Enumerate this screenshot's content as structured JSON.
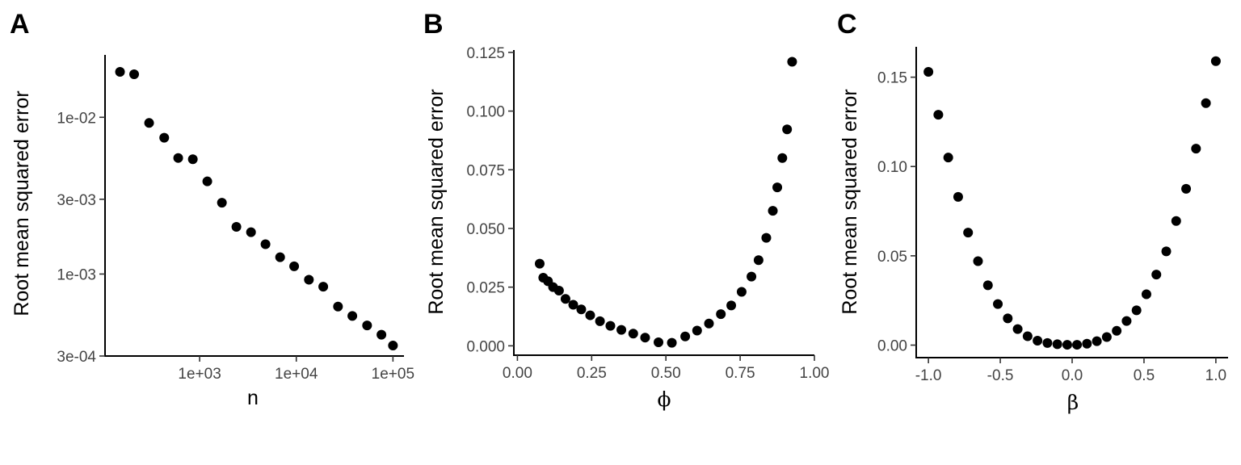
{
  "chart_data": [
    {
      "panel": "A",
      "type": "scatter",
      "xlabel": "n",
      "ylabel": "Root mean squared error",
      "xscale": "log10",
      "yscale": "log10",
      "xlim": [
        105,
        130000
      ],
      "ylim": [
        0.0003,
        0.025
      ],
      "xticks": [
        1000,
        10000,
        100000
      ],
      "xtick_labels": [
        "1e+03",
        "1e+04",
        "1e+05"
      ],
      "yticks": [
        0.0003,
        0.001,
        0.003,
        0.01
      ],
      "ytick_labels": [
        "3e-04",
        "1e-03",
        "3e-03",
        "1e-02"
      ],
      "grid": false,
      "points": [
        {
          "x": 150,
          "y": 0.0195
        },
        {
          "x": 210,
          "y": 0.0188
        },
        {
          "x": 300,
          "y": 0.0092
        },
        {
          "x": 430,
          "y": 0.0074
        },
        {
          "x": 600,
          "y": 0.0055
        },
        {
          "x": 850,
          "y": 0.0054
        },
        {
          "x": 1200,
          "y": 0.0039
        },
        {
          "x": 1700,
          "y": 0.00285
        },
        {
          "x": 2400,
          "y": 0.002
        },
        {
          "x": 3400,
          "y": 0.00185
        },
        {
          "x": 4800,
          "y": 0.00155
        },
        {
          "x": 6800,
          "y": 0.00128
        },
        {
          "x": 9500,
          "y": 0.00112
        },
        {
          "x": 13500,
          "y": 0.00092
        },
        {
          "x": 19000,
          "y": 0.00083
        },
        {
          "x": 27000,
          "y": 0.00062
        },
        {
          "x": 38000,
          "y": 0.00054
        },
        {
          "x": 54000,
          "y": 0.00047
        },
        {
          "x": 76000,
          "y": 0.00041
        },
        {
          "x": 100000,
          "y": 0.00035
        }
      ]
    },
    {
      "panel": "B",
      "type": "scatter",
      "xlabel": "ϕ",
      "ylabel": "Root mean squared error",
      "xscale": "linear",
      "yscale": "linear",
      "xlim": [
        -0.012,
        1.0
      ],
      "ylim": [
        -0.004,
        0.126
      ],
      "xticks": [
        0,
        0.25,
        0.5,
        0.75,
        1.0
      ],
      "xtick_labels": [
        "0.00",
        "0.25",
        "0.50",
        "0.75",
        "1.00"
      ],
      "yticks": [
        0,
        0.025,
        0.05,
        0.075,
        0.1,
        0.125
      ],
      "ytick_labels": [
        "0.000",
        "0.025",
        "0.050",
        "0.075",
        "0.100",
        "0.125"
      ],
      "grid": false,
      "points": [
        {
          "x": 0.075,
          "y": 0.035
        },
        {
          "x": 0.087,
          "y": 0.029
        },
        {
          "x": 0.103,
          "y": 0.0275
        },
        {
          "x": 0.12,
          "y": 0.025
        },
        {
          "x": 0.14,
          "y": 0.0235
        },
        {
          "x": 0.162,
          "y": 0.02
        },
        {
          "x": 0.188,
          "y": 0.0175
        },
        {
          "x": 0.215,
          "y": 0.0155
        },
        {
          "x": 0.245,
          "y": 0.013
        },
        {
          "x": 0.278,
          "y": 0.0105
        },
        {
          "x": 0.313,
          "y": 0.0085
        },
        {
          "x": 0.35,
          "y": 0.0068
        },
        {
          "x": 0.39,
          "y": 0.0052
        },
        {
          "x": 0.43,
          "y": 0.0035
        },
        {
          "x": 0.475,
          "y": 0.0015
        },
        {
          "x": 0.52,
          "y": 0.0013
        },
        {
          "x": 0.565,
          "y": 0.004
        },
        {
          "x": 0.605,
          "y": 0.0065
        },
        {
          "x": 0.645,
          "y": 0.0095
        },
        {
          "x": 0.685,
          "y": 0.0135
        },
        {
          "x": 0.72,
          "y": 0.0172
        },
        {
          "x": 0.755,
          "y": 0.023
        },
        {
          "x": 0.788,
          "y": 0.0295
        },
        {
          "x": 0.812,
          "y": 0.0365
        },
        {
          "x": 0.838,
          "y": 0.046
        },
        {
          "x": 0.86,
          "y": 0.0575
        },
        {
          "x": 0.875,
          "y": 0.0675
        },
        {
          "x": 0.892,
          "y": 0.08
        },
        {
          "x": 0.908,
          "y": 0.0922
        },
        {
          "x": 0.925,
          "y": 0.121
        }
      ]
    },
    {
      "panel": "C",
      "type": "scatter",
      "xlabel": "β",
      "ylabel": "Root mean squared error",
      "xscale": "linear",
      "yscale": "linear",
      "xlim": [
        -1.085,
        1.085
      ],
      "ylim": [
        -0.007,
        0.167
      ],
      "xticks": [
        -1.0,
        -0.5,
        0.0,
        0.5,
        1.0
      ],
      "xtick_labels": [
        "-1.0",
        "-0.5",
        "0.0",
        "0.5",
        "1.0"
      ],
      "yticks": [
        0,
        0.05,
        0.1,
        0.15
      ],
      "ytick_labels": [
        "0.00",
        "0.05",
        "0.10",
        "0.15"
      ],
      "grid": false,
      "points": [
        {
          "x": -1.0,
          "y": 0.153
        },
        {
          "x": -0.931,
          "y": 0.129
        },
        {
          "x": -0.862,
          "y": 0.105
        },
        {
          "x": -0.793,
          "y": 0.083
        },
        {
          "x": -0.724,
          "y": 0.063
        },
        {
          "x": -0.655,
          "y": 0.047
        },
        {
          "x": -0.586,
          "y": 0.0335
        },
        {
          "x": -0.517,
          "y": 0.023
        },
        {
          "x": -0.448,
          "y": 0.015
        },
        {
          "x": -0.379,
          "y": 0.009
        },
        {
          "x": -0.31,
          "y": 0.005
        },
        {
          "x": -0.241,
          "y": 0.0025
        },
        {
          "x": -0.172,
          "y": 0.0012
        },
        {
          "x": -0.103,
          "y": 0.0005
        },
        {
          "x": -0.034,
          "y": 0.0002
        },
        {
          "x": 0.034,
          "y": 0.0002
        },
        {
          "x": 0.103,
          "y": 0.0008
        },
        {
          "x": 0.172,
          "y": 0.0022
        },
        {
          "x": 0.241,
          "y": 0.0045
        },
        {
          "x": 0.31,
          "y": 0.008
        },
        {
          "x": 0.379,
          "y": 0.0135
        },
        {
          "x": 0.448,
          "y": 0.0195
        },
        {
          "x": 0.517,
          "y": 0.0285
        },
        {
          "x": 0.586,
          "y": 0.0395
        },
        {
          "x": 0.655,
          "y": 0.0525
        },
        {
          "x": 0.724,
          "y": 0.0695
        },
        {
          "x": 0.793,
          "y": 0.0875
        },
        {
          "x": 0.862,
          "y": 0.11
        },
        {
          "x": 0.931,
          "y": 0.1355
        },
        {
          "x": 1.0,
          "y": 0.159
        }
      ]
    }
  ]
}
